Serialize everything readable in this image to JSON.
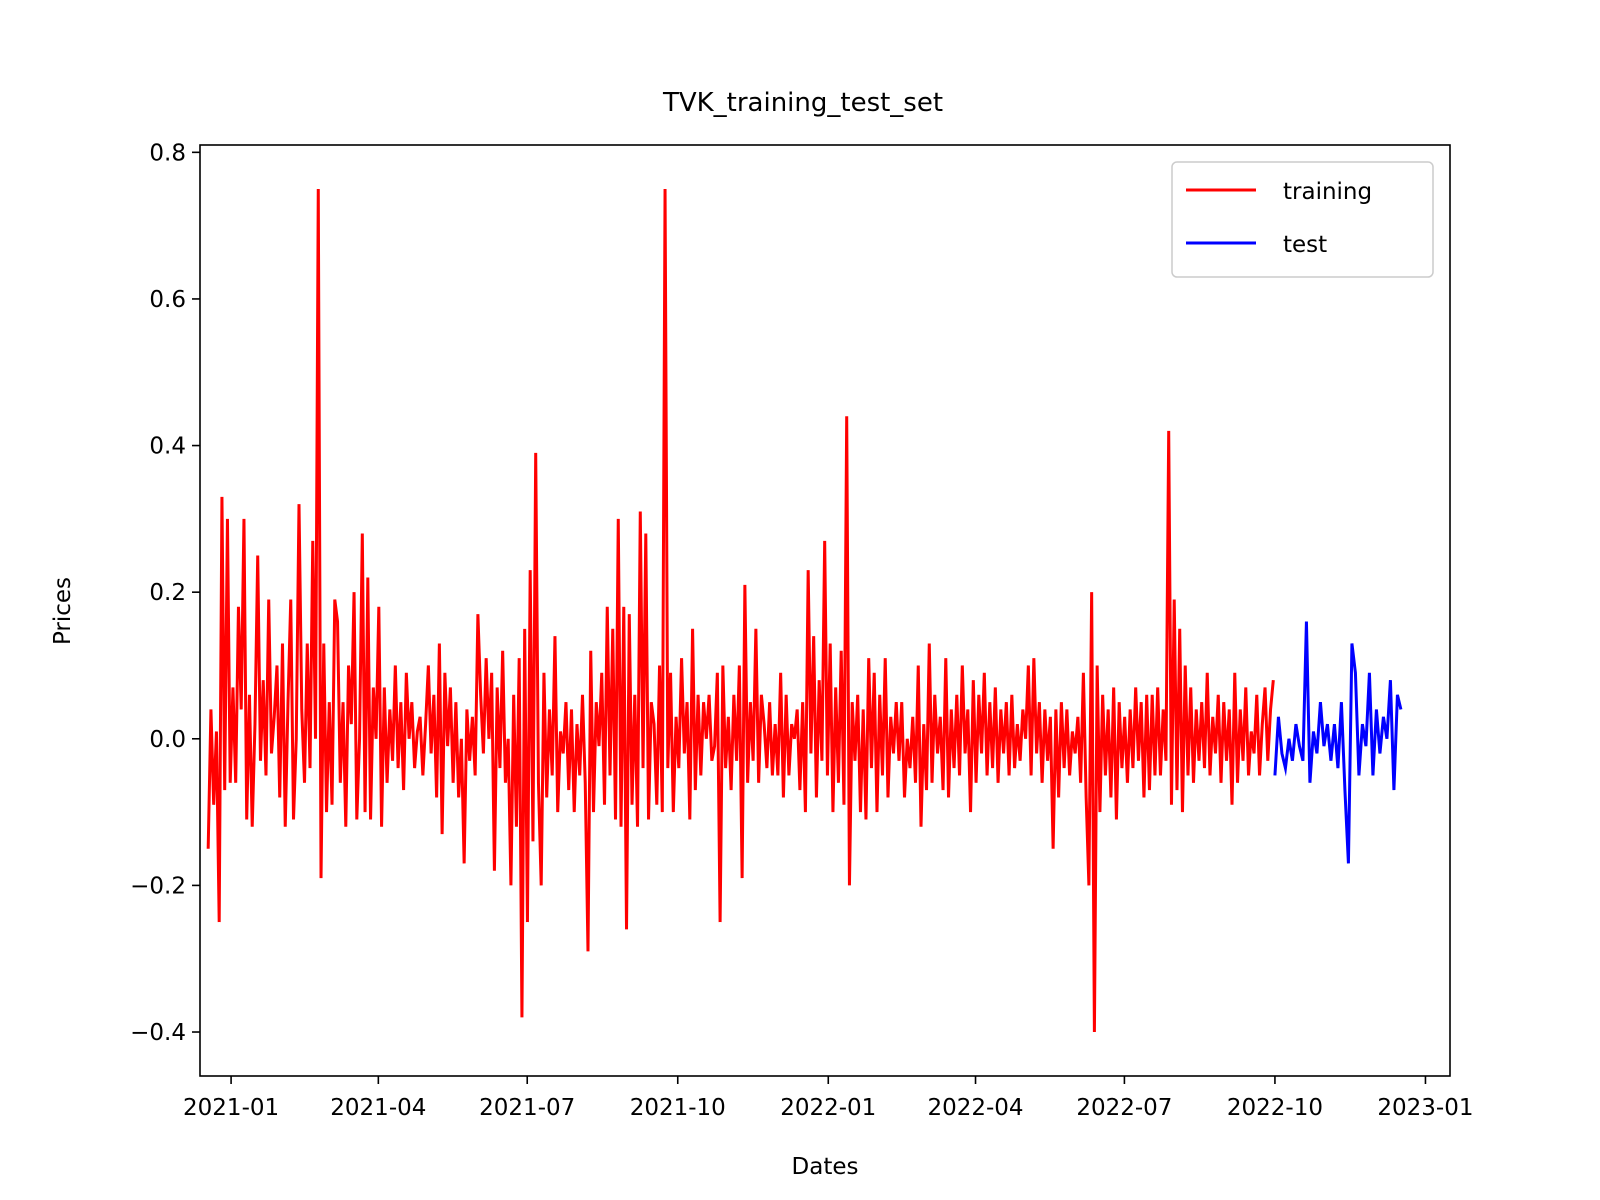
{
  "chart_data": {
    "type": "line",
    "title": "TVK_training_test_set",
    "xlabel": "Dates",
    "ylabel": "Prices",
    "xlim": [
      "2020-12-13",
      "2023-01-16"
    ],
    "ylim": [
      -0.46,
      0.81
    ],
    "x_ticks": [
      "2021-01",
      "2021-04",
      "2021-07",
      "2021-10",
      "2022-01",
      "2022-04",
      "2022-07",
      "2022-10",
      "2023-01"
    ],
    "y_ticks": [
      -0.4,
      -0.2,
      0.0,
      0.2,
      0.4,
      0.6,
      0.8
    ],
    "y_tick_labels": [
      "−0.4",
      "−0.2",
      "0.0",
      "0.2",
      "0.4",
      "0.6",
      "0.8"
    ],
    "grid": false,
    "legend_position": "top-right",
    "series": [
      {
        "name": "training",
        "color": "#ff0000",
        "x_range": [
          "2020-12-18",
          "2022-09-30"
        ],
        "values": [
          -0.15,
          0.04,
          -0.09,
          0.01,
          -0.25,
          0.33,
          -0.07,
          0.3,
          -0.06,
          0.07,
          -0.06,
          0.18,
          0.04,
          0.3,
          -0.11,
          0.06,
          -0.12,
          0.02,
          0.25,
          -0.03,
          0.08,
          -0.05,
          0.19,
          -0.02,
          0.03,
          0.1,
          -0.08,
          0.13,
          -0.12,
          0.05,
          0.19,
          -0.11,
          0.0,
          0.32,
          0.04,
          -0.06,
          0.13,
          -0.04,
          0.27,
          0.0,
          0.75,
          -0.19,
          0.13,
          -0.1,
          0.05,
          -0.09,
          0.19,
          0.16,
          -0.06,
          0.05,
          -0.12,
          0.1,
          0.02,
          0.2,
          -0.11,
          0.0,
          0.28,
          -0.1,
          0.22,
          -0.11,
          0.07,
          0.0,
          0.18,
          -0.12,
          0.07,
          -0.06,
          0.04,
          -0.03,
          0.1,
          -0.04,
          0.05,
          -0.07,
          0.09,
          0.0,
          0.05,
          -0.04,
          0.01,
          0.03,
          -0.05,
          0.02,
          0.1,
          -0.02,
          0.06,
          -0.08,
          0.13,
          -0.13,
          0.09,
          -0.01,
          0.07,
          -0.06,
          0.05,
          -0.08,
          0.0,
          -0.17,
          0.04,
          -0.03,
          0.03,
          -0.05,
          0.17,
          0.06,
          -0.02,
          0.11,
          0.0,
          0.09,
          -0.18,
          0.07,
          -0.04,
          0.12,
          -0.06,
          0.0,
          -0.2,
          0.06,
          -0.12,
          0.11,
          -0.38,
          0.15,
          -0.25,
          0.23,
          -0.14,
          0.39,
          -0.06,
          -0.2,
          0.09,
          -0.08,
          0.04,
          -0.05,
          0.14,
          -0.1,
          0.01,
          -0.02,
          0.05,
          -0.07,
          0.04,
          -0.1,
          0.02,
          -0.05,
          0.06,
          -0.06,
          -0.29,
          0.12,
          -0.1,
          0.05,
          -0.01,
          0.09,
          -0.09,
          0.18,
          -0.05,
          0.15,
          -0.11,
          0.3,
          -0.12,
          0.18,
          -0.26,
          0.17,
          -0.09,
          0.06,
          -0.12,
          0.31,
          -0.04,
          0.28,
          -0.11,
          0.05,
          0.02,
          -0.09,
          0.1,
          -0.1,
          0.75,
          -0.04,
          0.09,
          -0.1,
          0.03,
          -0.04,
          0.11,
          -0.02,
          0.05,
          -0.11,
          0.15,
          -0.07,
          0.06,
          -0.05,
          0.05,
          0.0,
          0.06,
          -0.03,
          -0.01,
          0.09,
          -0.25,
          0.1,
          -0.04,
          0.03,
          -0.07,
          0.06,
          -0.03,
          0.1,
          -0.19,
          0.21,
          -0.06,
          0.05,
          -0.03,
          0.15,
          -0.06,
          0.06,
          0.02,
          -0.04,
          0.05,
          -0.05,
          0.02,
          -0.05,
          0.09,
          -0.08,
          0.06,
          -0.05,
          0.02,
          0.0,
          0.04,
          -0.07,
          0.05,
          -0.1,
          0.23,
          -0.02,
          0.14,
          -0.08,
          0.08,
          -0.03,
          0.27,
          -0.05,
          0.13,
          -0.1,
          0.07,
          -0.06,
          0.12,
          -0.09,
          0.44,
          -0.2,
          0.05,
          -0.03,
          0.06,
          -0.1,
          0.04,
          -0.11,
          0.11,
          -0.04,
          0.09,
          -0.1,
          0.06,
          -0.05,
          0.11,
          -0.08,
          0.03,
          -0.02,
          0.05,
          -0.03,
          0.05,
          -0.08,
          0.0,
          -0.04,
          0.03,
          -0.06,
          0.1,
          -0.12,
          0.02,
          -0.07,
          0.13,
          -0.06,
          0.06,
          -0.02,
          0.03,
          -0.07,
          0.11,
          -0.08,
          0.04,
          -0.04,
          0.06,
          -0.05,
          0.1,
          -0.02,
          0.04,
          -0.1,
          0.08,
          -0.06,
          0.06,
          -0.02,
          0.09,
          -0.05,
          0.05,
          -0.04,
          0.07,
          -0.06,
          0.04,
          -0.02,
          0.05,
          -0.05,
          0.06,
          -0.04,
          0.02,
          -0.03,
          0.04,
          0.0,
          0.1,
          -0.05,
          0.11,
          -0.02,
          0.05,
          -0.06,
          0.04,
          -0.03,
          0.03,
          -0.15,
          0.04,
          -0.08,
          0.05,
          -0.04,
          0.04,
          -0.05,
          0.01,
          -0.02,
          0.03,
          -0.06,
          0.09,
          -0.08,
          -0.2,
          0.2,
          -0.4,
          0.1,
          -0.1,
          0.06,
          -0.05,
          0.04,
          -0.08,
          0.07,
          -0.11,
          0.05,
          -0.04,
          0.03,
          -0.06,
          0.04,
          -0.04,
          0.07,
          -0.03,
          0.05,
          -0.08,
          0.06,
          -0.07,
          0.06,
          -0.05,
          0.07,
          -0.05,
          0.04,
          -0.03,
          0.42,
          -0.09,
          0.19,
          -0.07,
          0.15,
          -0.1,
          0.1,
          -0.05,
          0.07,
          -0.06,
          0.04,
          -0.03,
          0.05,
          -0.04,
          0.09,
          -0.05,
          0.03,
          -0.02,
          0.06,
          -0.06,
          0.05,
          -0.03,
          0.04,
          -0.09,
          0.09,
          -0.06,
          0.04,
          -0.03,
          0.07,
          -0.05,
          0.01,
          -0.02,
          0.06,
          -0.05,
          0.02,
          0.07,
          -0.03,
          0.04,
          0.08
        ]
      },
      {
        "name": "test",
        "color": "#0000ff",
        "x_range": [
          "2022-10-01",
          "2022-12-17"
        ],
        "values": [
          -0.05,
          0.03,
          -0.02,
          -0.04,
          0.0,
          -0.03,
          0.02,
          -0.01,
          -0.03,
          0.16,
          -0.06,
          0.01,
          -0.02,
          0.05,
          -0.01,
          0.02,
          -0.03,
          0.02,
          -0.04,
          0.05,
          -0.07,
          -0.17,
          0.13,
          0.09,
          -0.05,
          0.02,
          -0.01,
          0.09,
          -0.05,
          0.04,
          -0.02,
          0.03,
          0.0,
          0.08,
          -0.07,
          0.06,
          0.04
        ]
      }
    ]
  }
}
